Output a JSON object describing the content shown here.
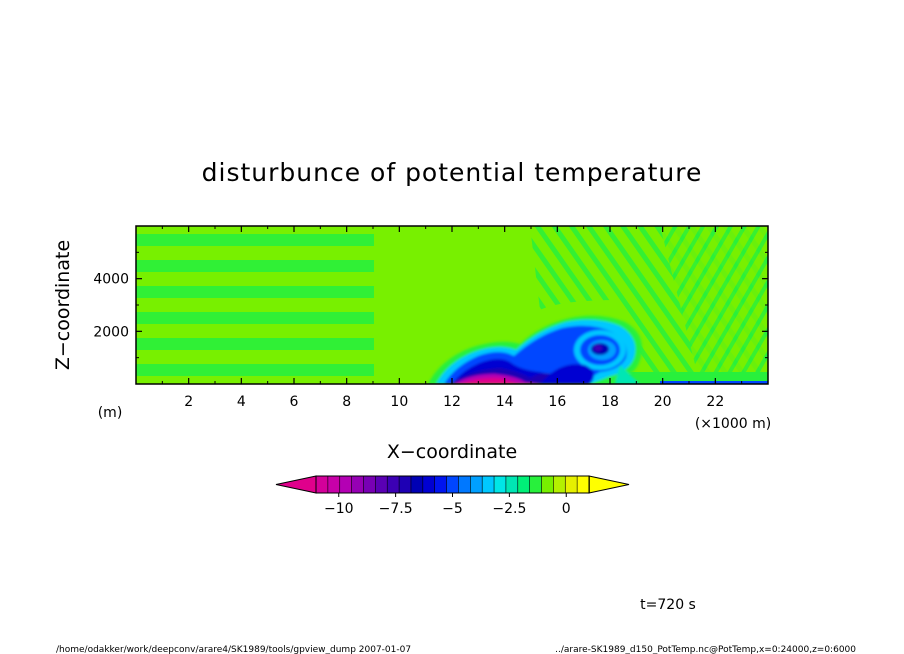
{
  "chart_data": {
    "type": "heatmap",
    "title": "disturbunce of potential temperature",
    "xlabel": "X−coordinate",
    "ylabel": "Z−coordinate",
    "x_unit": "(×1000 m)",
    "y_unit": "(m)",
    "xlim": [
      0,
      24
    ],
    "ylim": [
      0,
      6000
    ],
    "x_ticks": [
      "2",
      "4",
      "6",
      "8",
      "10",
      "12",
      "14",
      "16",
      "18",
      "20",
      "22"
    ],
    "y_ticks": [
      "2000",
      "4000"
    ],
    "colorbar": {
      "ticks": [
        "−10",
        "−7.5",
        "−5",
        "−2.5",
        "0"
      ],
      "range": [
        -11,
        1
      ],
      "colors": [
        "#e0008c",
        "#d4009a",
        "#c800a8",
        "#b400b4",
        "#9600b4",
        "#7800b4",
        "#5a00b4",
        "#3c00b4",
        "#1e00b4",
        "#0000b4",
        "#0000d2",
        "#0014f0",
        "#0046ff",
        "#0078ff",
        "#00a0ff",
        "#00c8ff",
        "#00e6e6",
        "#00e6b4",
        "#00f078",
        "#28f03c",
        "#78f000",
        "#b4f000",
        "#e6f000",
        "#ffff00"
      ]
    },
    "features": [
      {
        "name": "cold pool",
        "x_range": [
          11.5,
          19
        ],
        "z_range": [
          0,
          1500
        ],
        "min_value": -10
      },
      {
        "name": "vortex",
        "x_center": 17.7,
        "z_center": 1400,
        "min_value": -5
      }
    ],
    "annotation_time": "t=720 s",
    "footer_left": "/home/odakker/work/deepconv/arare4/SK1989/tools/gpview_dump  2007-01-07",
    "footer_right": "../arare-SK1989_d150_PotTemp.nc@PotTemp,x=0:24000,z=0:6000"
  }
}
